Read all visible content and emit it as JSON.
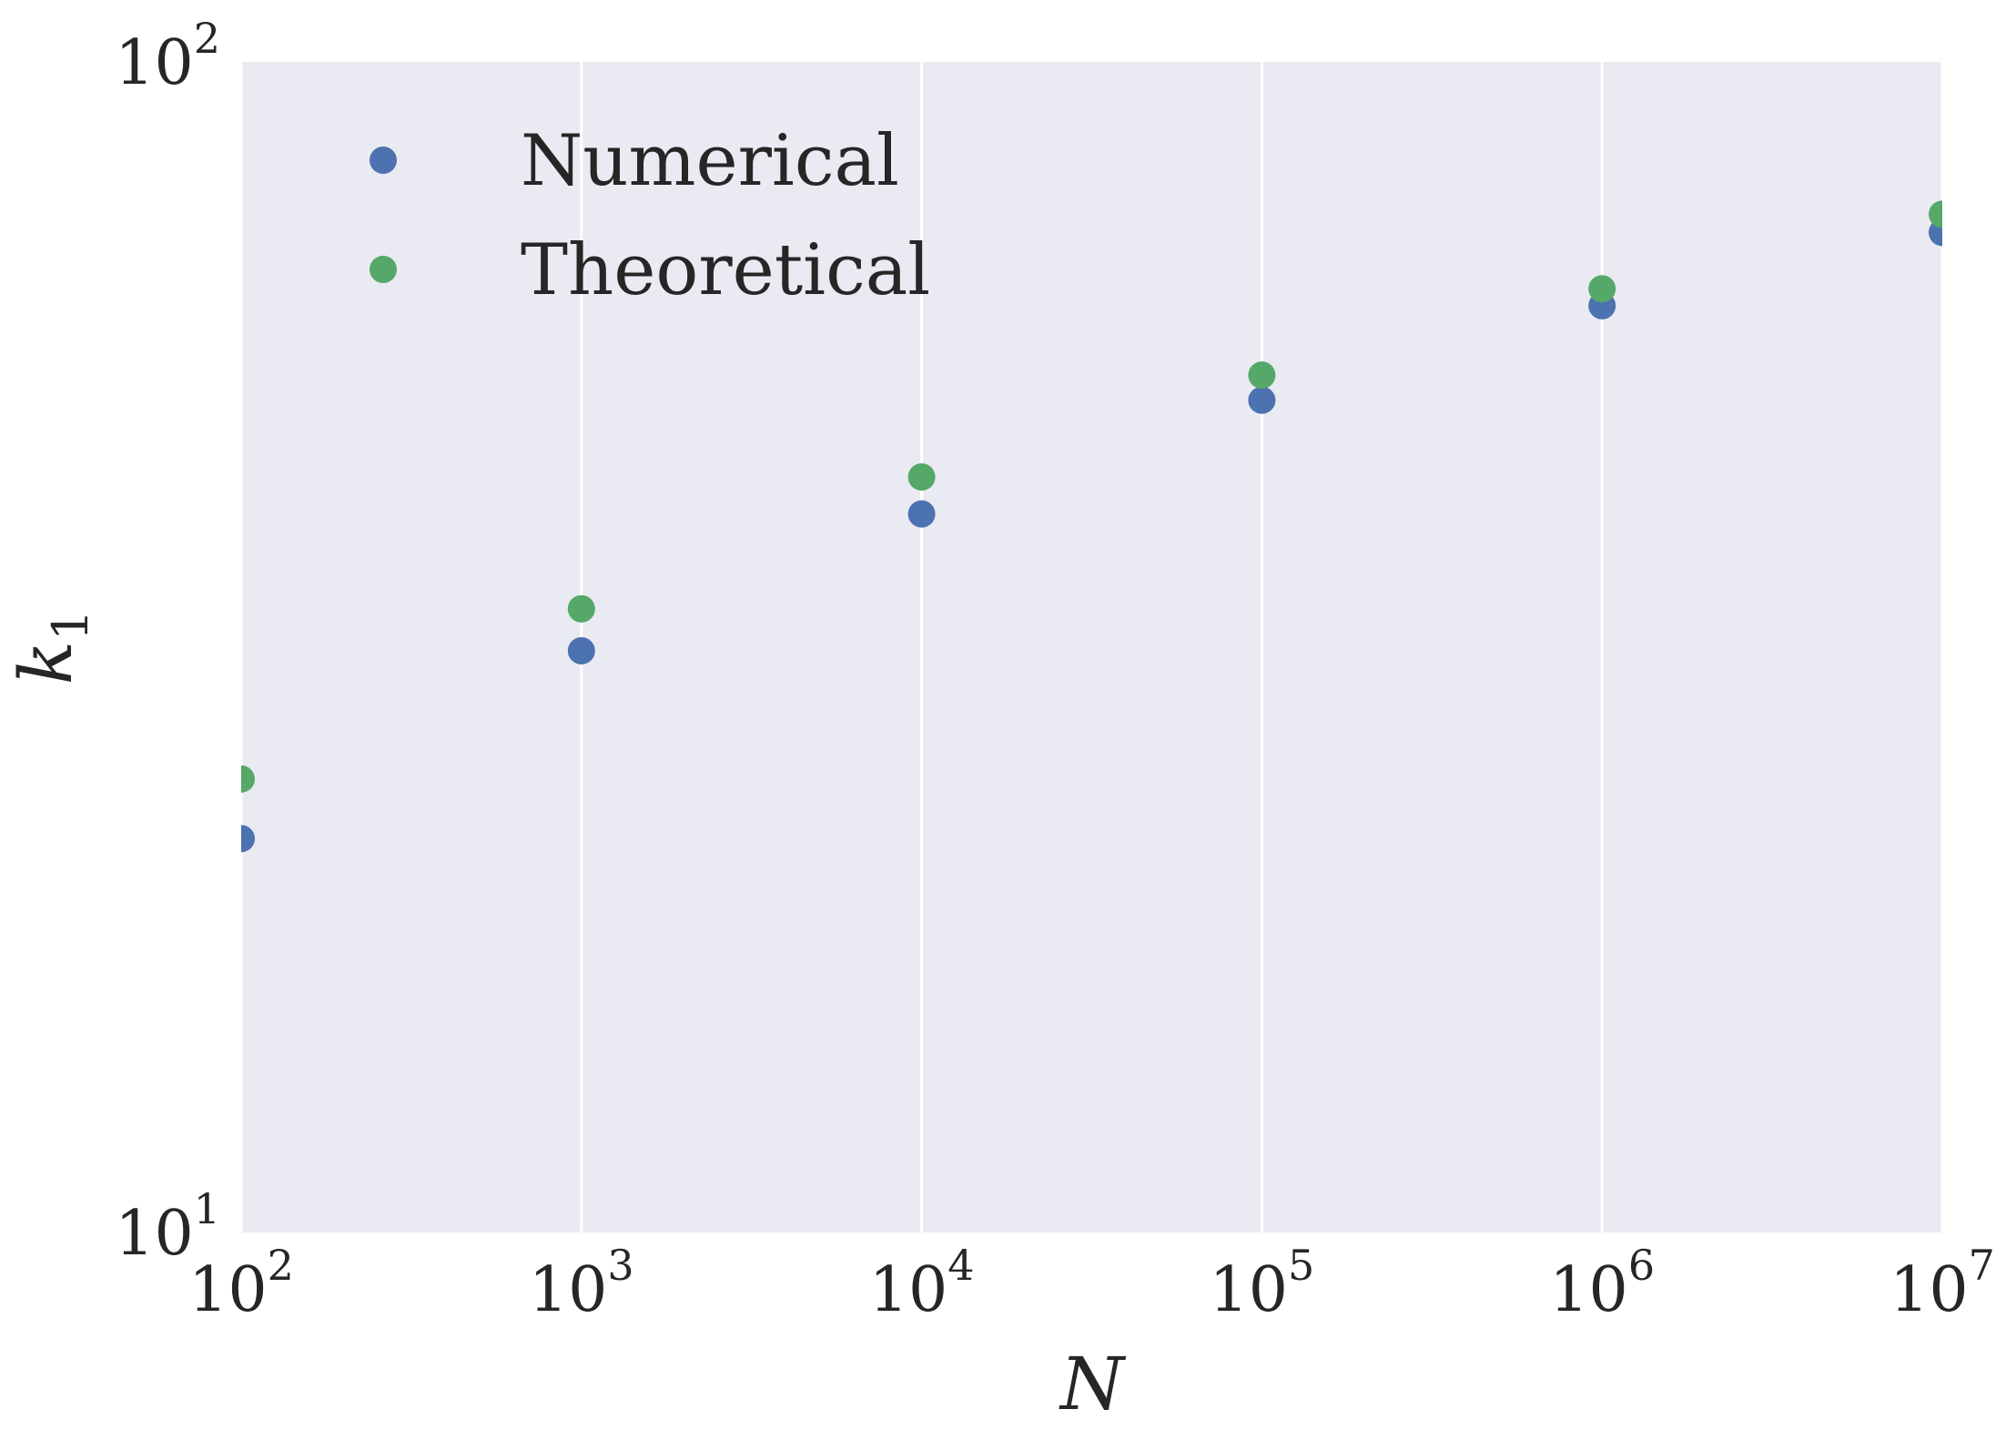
{
  "chart_data": {
    "type": "scatter",
    "title": "",
    "xlabel": "N",
    "ylabel": "k",
    "ylabel_subscript": "1",
    "xscale": "log",
    "yscale": "log",
    "xlim": [
      100,
      10000000
    ],
    "ylim": [
      10,
      100
    ],
    "x_ticks": [
      {
        "base": "10",
        "exp": "2",
        "value": 100
      },
      {
        "base": "10",
        "exp": "3",
        "value": 1000
      },
      {
        "base": "10",
        "exp": "4",
        "value": 10000
      },
      {
        "base": "10",
        "exp": "5",
        "value": 100000
      },
      {
        "base": "10",
        "exp": "6",
        "value": 1000000
      },
      {
        "base": "10",
        "exp": "7",
        "value": 10000000
      }
    ],
    "y_ticks": [
      {
        "base": "10",
        "exp": "1",
        "value": 10
      },
      {
        "base": "10",
        "exp": "2",
        "value": 100
      }
    ],
    "grid": true,
    "legend_position": "top-left",
    "background_color": "#eaeaf2",
    "series": [
      {
        "name": "Numerical",
        "color": "#4c72b0",
        "x": [
          100,
          1000,
          10000,
          100000,
          1000000,
          10000000
        ],
        "y": [
          21.7,
          31.4,
          41.1,
          51.4,
          61.9,
          71.5
        ]
      },
      {
        "name": "Theoretical",
        "color": "#55a868",
        "x": [
          100,
          1000,
          10000,
          100000,
          1000000,
          10000000
        ],
        "y": [
          24.4,
          34.1,
          44.2,
          54.0,
          64.0,
          74.1
        ]
      }
    ]
  }
}
